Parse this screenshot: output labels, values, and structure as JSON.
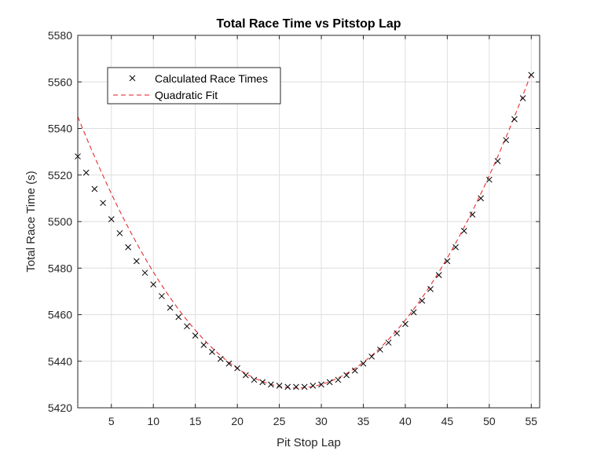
{
  "chart_data": {
    "type": "scatter",
    "title": "Total Race Time vs Pitstop Lap",
    "xlabel": "Pit Stop Lap",
    "ylabel": "Total Race Time (s)",
    "xlim": [
      1,
      56
    ],
    "ylim": [
      5420,
      5580
    ],
    "xticks": [
      5,
      10,
      15,
      20,
      25,
      30,
      35,
      40,
      45,
      50,
      55
    ],
    "yticks": [
      5420,
      5440,
      5460,
      5480,
      5500,
      5520,
      5540,
      5560,
      5580
    ],
    "grid": true,
    "legend_position": "top-left",
    "series": [
      {
        "name": "Calculated Race Times",
        "marker": "x",
        "color": "#000000",
        "x": [
          1,
          2,
          3,
          4,
          5,
          6,
          7,
          8,
          9,
          10,
          11,
          12,
          13,
          14,
          15,
          16,
          17,
          18,
          19,
          20,
          21,
          22,
          23,
          24,
          25,
          26,
          27,
          28,
          29,
          30,
          31,
          32,
          33,
          34,
          35,
          36,
          37,
          38,
          39,
          40,
          41,
          42,
          43,
          44,
          45,
          46,
          47,
          48,
          49,
          50,
          51,
          52,
          53,
          54,
          55
        ],
        "y": [
          5528,
          5521,
          5514,
          5508,
          5501,
          5495,
          5489,
          5483,
          5478,
          5473,
          5468,
          5463,
          5459,
          5455,
          5451,
          5447,
          5444,
          5441,
          5439,
          5437,
          5434,
          5432,
          5431,
          5430,
          5429.5,
          5429,
          5429,
          5429,
          5429.5,
          5430,
          5431,
          5432,
          5434,
          5436,
          5439,
          5442,
          5445,
          5448,
          5452,
          5456,
          5461,
          5466,
          5471,
          5477,
          5483,
          5489,
          5496,
          5503,
          5510,
          5518,
          5526,
          5535,
          5544,
          5553,
          5563
        ]
      },
      {
        "name": "Quadratic Fit",
        "line_style": "dashed",
        "color": "#e41a1c",
        "coefficients": {
          "a": 0.1725,
          "vertex_x": 27,
          "vertex_y": 5428.5
        }
      }
    ]
  }
}
